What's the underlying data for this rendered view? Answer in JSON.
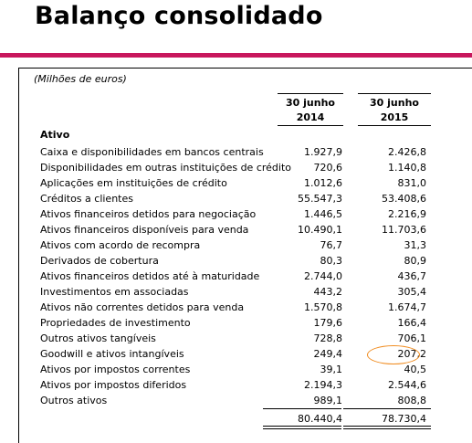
{
  "title": "Balanço consolidado",
  "units": "(Milhões de euros)",
  "columns": [
    {
      "line1": "30 junho",
      "line2": "2014"
    },
    {
      "line1": "30 junho",
      "line2": "2015"
    }
  ],
  "section": "Ativo",
  "rows": [
    {
      "label": "Caixa e disponibilidades em bancos centrais",
      "v2014": "1.927,9",
      "v2015": "2.426,8"
    },
    {
      "label": "Disponibilidades em outras instituições de crédito",
      "v2014": "720,6",
      "v2015": "1.140,8"
    },
    {
      "label": "Aplicações em instituições de crédito",
      "v2014": "1.012,6",
      "v2015": "831,0"
    },
    {
      "label": "Créditos a clientes",
      "v2014": "55.547,3",
      "v2015": "53.408,6"
    },
    {
      "label": "Ativos financeiros detidos para negociação",
      "v2014": "1.446,5",
      "v2015": "2.216,9"
    },
    {
      "label": "Ativos financeiros disponíveis para venda",
      "v2014": "10.490,1",
      "v2015": "11.703,6"
    },
    {
      "label": "Ativos com acordo de recompra",
      "v2014": "76,7",
      "v2015": "31,3"
    },
    {
      "label": "Derivados de cobertura",
      "v2014": "80,3",
      "v2015": "80,9"
    },
    {
      "label": "Ativos financeiros detidos até à maturidade",
      "v2014": "2.744,0",
      "v2015": "436,7"
    },
    {
      "label": "Investimentos em associadas",
      "v2014": "443,2",
      "v2015": "305,4"
    },
    {
      "label": "Ativos não correntes detidos para venda",
      "v2014": "1.570,8",
      "v2015": "1.674,7"
    },
    {
      "label": "Propriedades de investimento",
      "v2014": "179,6",
      "v2015": "166,4"
    },
    {
      "label": "Outros ativos tangíveis",
      "v2014": "728,8",
      "v2015": "706,1"
    },
    {
      "label": "Goodwill e ativos intangíveis",
      "v2014": "249,4",
      "v2015": "207,2"
    },
    {
      "label": "Ativos por impostos correntes",
      "v2014": "39,1",
      "v2015": "40,5"
    },
    {
      "label": "Ativos por impostos diferidos",
      "v2014": "2.194,3",
      "v2015": "2.544,6"
    },
    {
      "label": "Outros ativos",
      "v2014": "989,1",
      "v2015": "808,8"
    }
  ],
  "totals": {
    "v2014": "80.440,4",
    "v2015": "78.730,4"
  },
  "highlight_color": "#f08a1c",
  "accent_color": "#c8175d"
}
